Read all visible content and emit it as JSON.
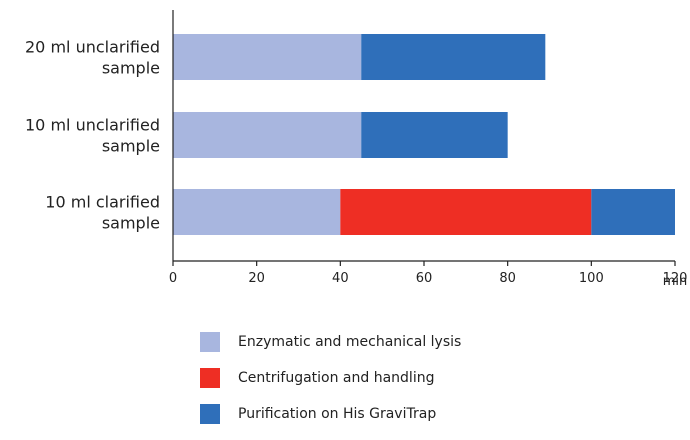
{
  "chart_data": {
    "type": "bar",
    "orientation": "horizontal",
    "stacked": true,
    "categories": [
      "20 ml unclarified\nsample",
      "10 ml unclarified\nsample",
      "10 ml clarified\nsample"
    ],
    "series": [
      {
        "name": "Enzymatic and mechanical lysis",
        "color": "#a8b6df",
        "values": [
          45,
          45,
          40
        ]
      },
      {
        "name": "Centrifugation and handling",
        "color": "#ee2e24",
        "values": [
          0,
          0,
          60
        ]
      },
      {
        "name": "Purification on His GraviTrap",
        "color": "#2f6fba",
        "values": [
          44,
          35,
          20
        ]
      }
    ],
    "xlim": [
      0,
      120
    ],
    "xticks": [
      0,
      20,
      40,
      60,
      80,
      100,
      120
    ],
    "xunit": "min",
    "grid": false,
    "legend_position": "bottom"
  }
}
